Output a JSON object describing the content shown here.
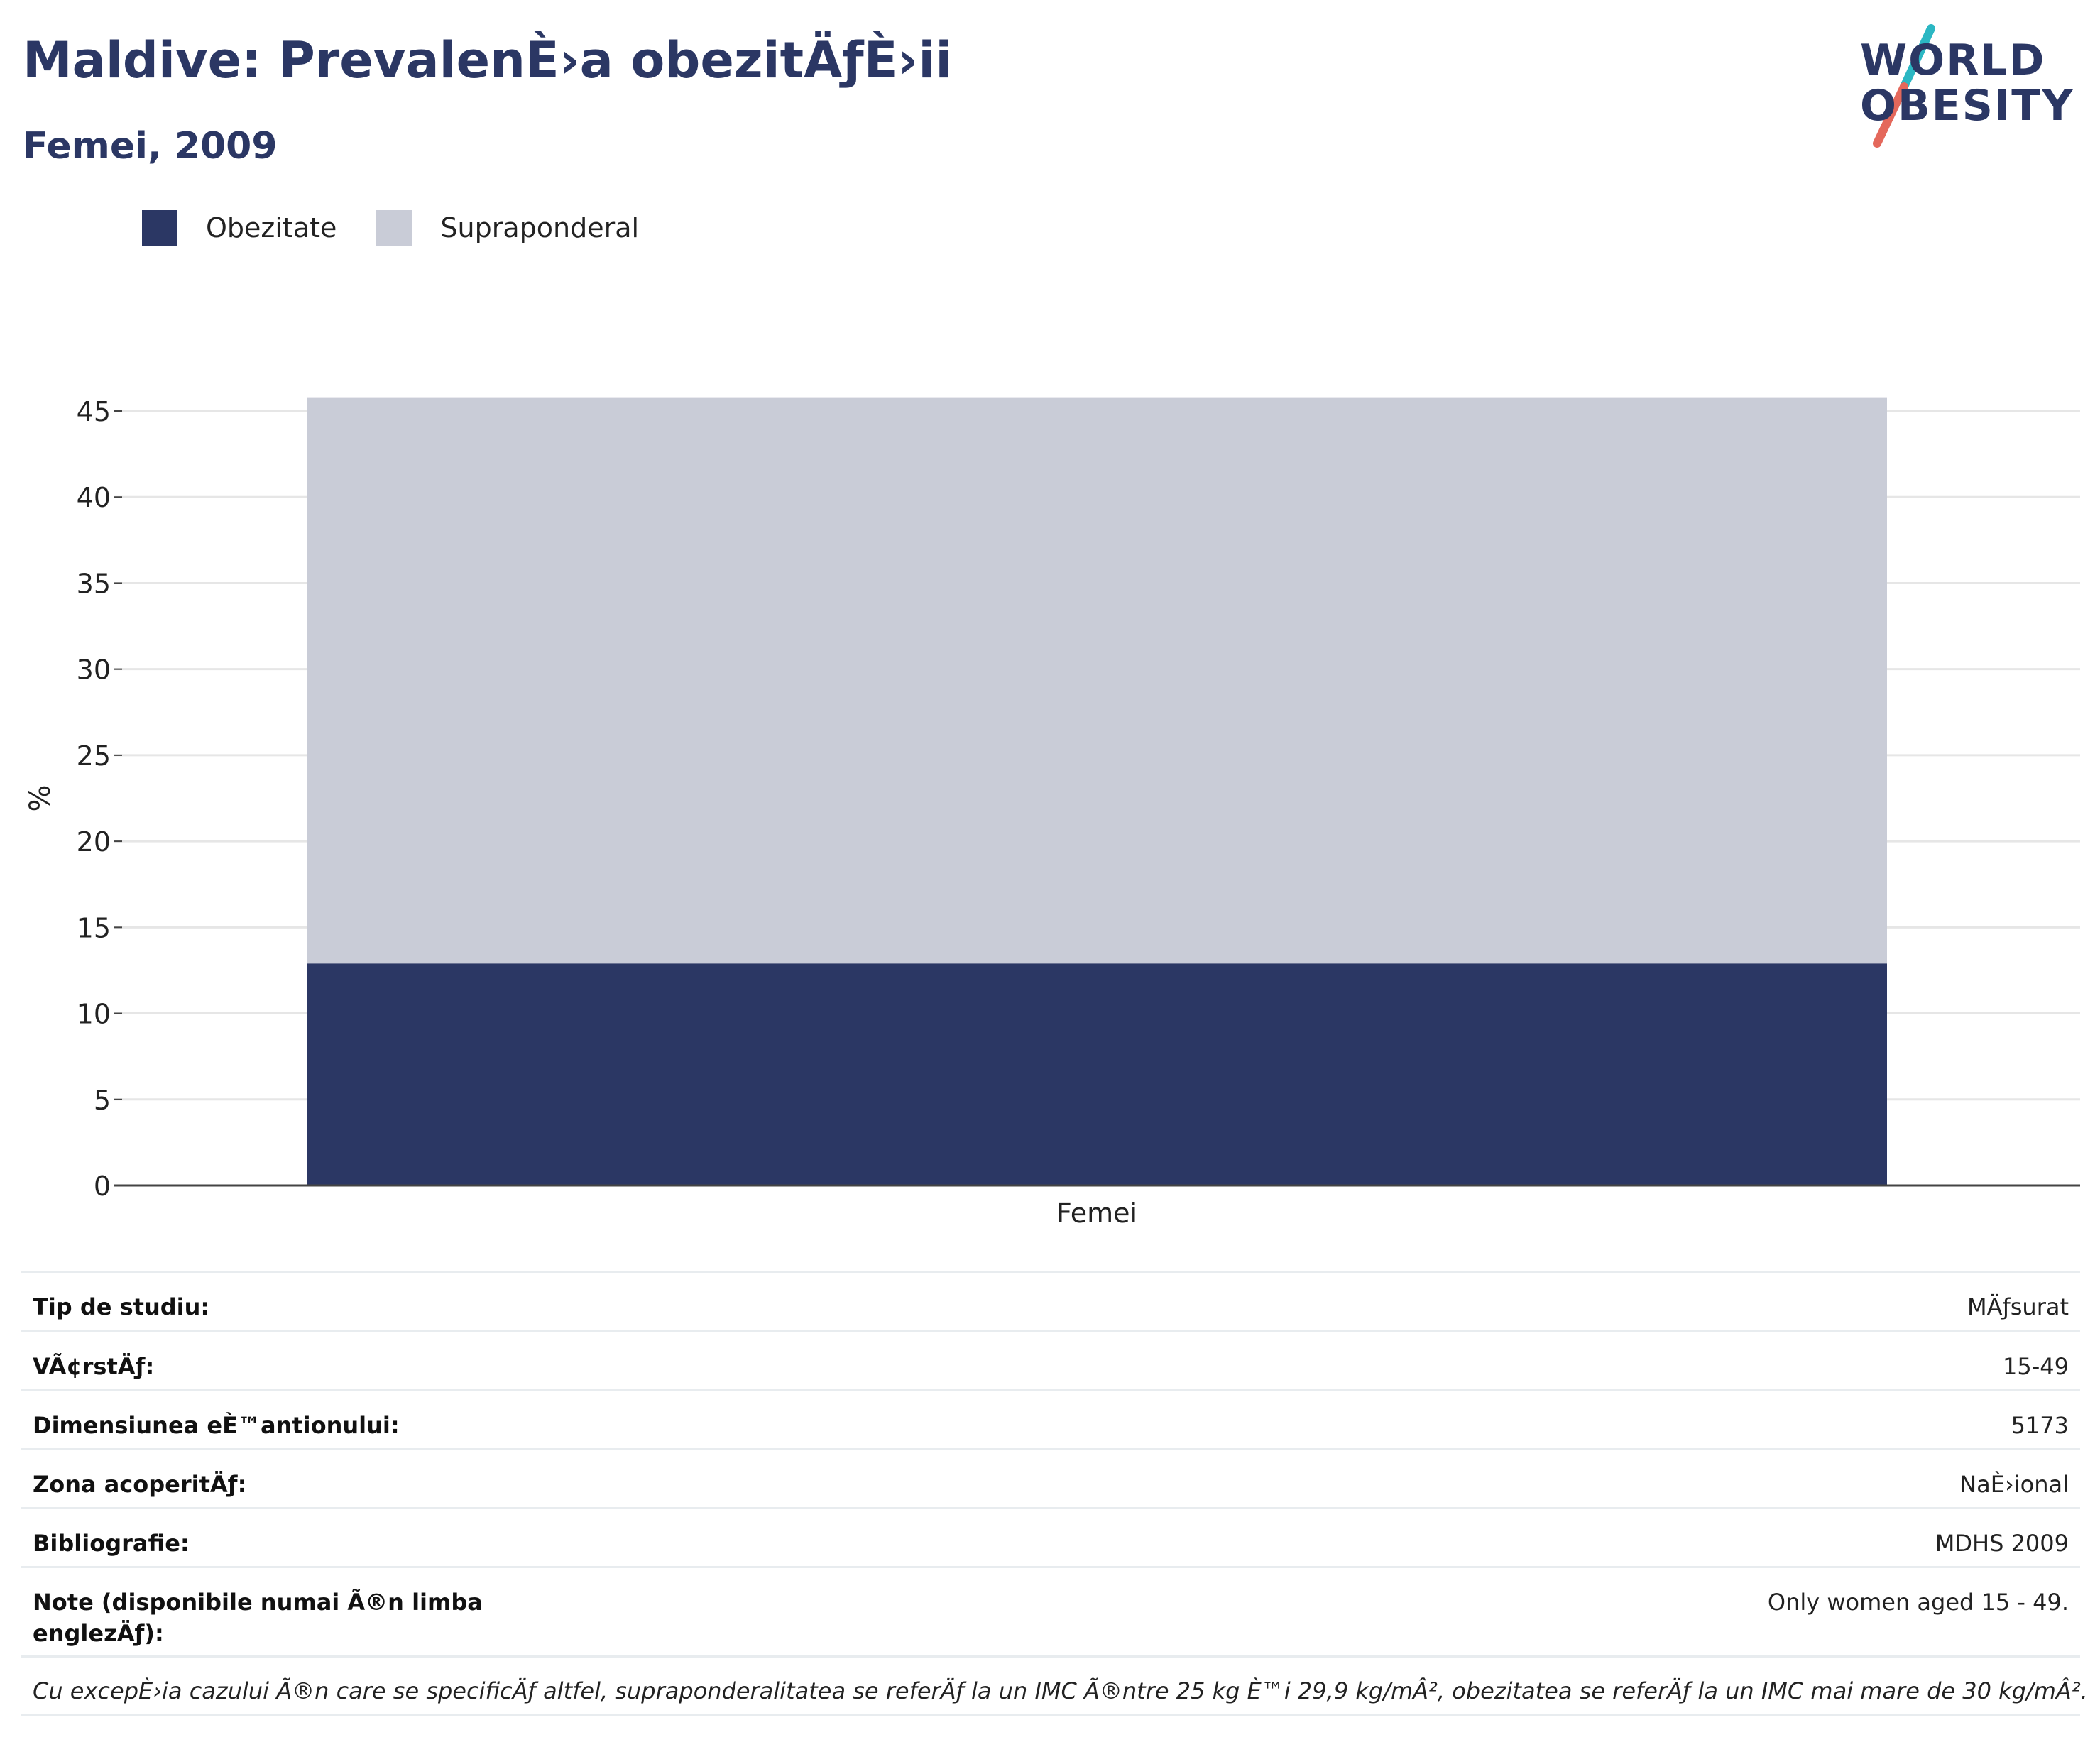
{
  "header": {
    "title": "Maldive: PrevalenÈ›a obezitÄƒÈ›ii",
    "subtitle": "Femei, 2009"
  },
  "logo": {
    "line1": "WORLD",
    "line2": "OBESITY",
    "accent_teal": "#2bb7c3",
    "accent_red": "#e4685b"
  },
  "legend": [
    {
      "label": "Obezitate",
      "color": "#2b3764"
    },
    {
      "label": "Supraponderal",
      "color": "#c9ccd7"
    }
  ],
  "chart_data": {
    "type": "bar",
    "stacked": true,
    "categories": [
      "Femei"
    ],
    "series": [
      {
        "name": "Obezitate",
        "values": [
          12.9
        ],
        "color": "#2b3764"
      },
      {
        "name": "Supraponderal",
        "values": [
          32.9
        ],
        "color": "#c9ccd7"
      }
    ],
    "ylabel": "%",
    "xlabel": "",
    "ylim": [
      0,
      45
    ],
    "yticks": [
      "0",
      "5",
      "10",
      "15",
      "20",
      "25",
      "30",
      "35",
      "40",
      "45"
    ],
    "grid": true
  },
  "table": [
    {
      "key": "Tip de studiu:",
      "value": "MÄƒsurat"
    },
    {
      "key": "VÃ¢rstÄƒ:",
      "value": "15-49"
    },
    {
      "key": "Dimensiunea eÈ™antionului:",
      "value": "5173"
    },
    {
      "key": "Zona acoperitÄƒ:",
      "value": "NaÈ›ional"
    },
    {
      "key": "Bibliografie:",
      "value": "MDHS 2009"
    },
    {
      "key": "Note (disponibile numai Ã®n limba englezÄƒ):",
      "value": "Only women aged 15 - 49."
    }
  ],
  "footnote": "Cu excepÈ›ia cazului Ã®n care se specificÄƒ altfel, supraponderalitatea se referÄƒ la un IMC Ã®ntre 25 kg È™i 29,9 kg/mÂ², obezitatea se referÄƒ la un IMC mai mare de 30 kg/mÂ²."
}
